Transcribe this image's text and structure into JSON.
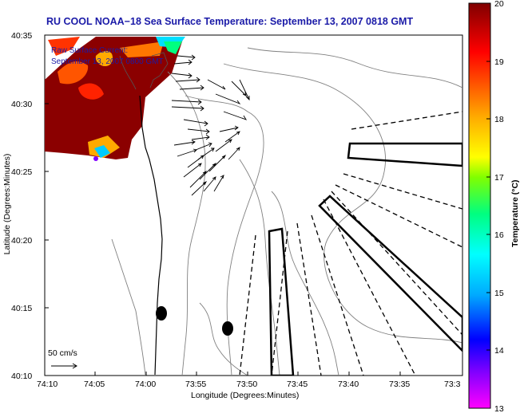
{
  "title": "RU COOL  NOAA−18  Sea Surface Temperature:  September 13, 2007 0818 GMT",
  "map": {
    "xlabel": "Longitude (Degrees:Minutes)",
    "ylabel": "Latitude (Degrees:Minutes)",
    "x_ticks": [
      "74:10",
      "74:05",
      "74:00",
      "73:55",
      "73:50",
      "73:45",
      "73:40",
      "73:35",
      "73:3"
    ],
    "y_ticks": [
      "40:35",
      "40:30",
      "40:25",
      "40:20",
      "40:15",
      "40:10"
    ],
    "raw_current_label_1": "Raw Surface Current:",
    "raw_current_label_2": "September 13, 2007 0800 GMT",
    "scale_label": "50 cm/s"
  },
  "colorbar": {
    "label": "Temperature (°C)",
    "ticks": [
      "20",
      "19",
      "18",
      "17",
      "16",
      "15",
      "14",
      "13"
    ],
    "min": 13,
    "max": 20,
    "colors": [
      "#ff00ff",
      "#8000ff",
      "#0000ff",
      "#00aaff",
      "#00ffff",
      "#00ff80",
      "#80ff00",
      "#ffff00",
      "#ffaa00",
      "#ff5500",
      "#ff0000",
      "#800000"
    ]
  },
  "palette": {
    "title_blue": "#1b1ba8",
    "sst_dark_red": "#8b0000",
    "contour_gray": "#808080"
  }
}
